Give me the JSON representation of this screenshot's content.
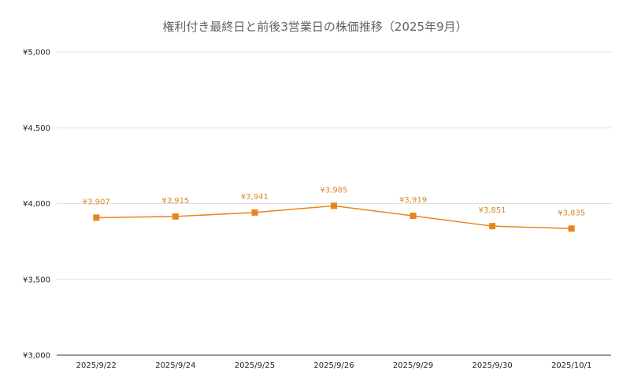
{
  "chart_data": {
    "type": "line",
    "title": "権利付き最終日と前後3営業日の株価推移（2025年9月）",
    "xlabel": "",
    "ylabel": "",
    "categories": [
      "2025/9/22",
      "2025/9/24",
      "2025/9/25",
      "2025/9/26",
      "2025/9/29",
      "2025/9/30",
      "2025/10/1"
    ],
    "series": [
      {
        "values": [
          3907,
          3915,
          3941,
          3985,
          3919,
          3851,
          3835
        ],
        "labels": [
          "¥3,907",
          "¥3,915",
          "¥3,941",
          "¥3,985",
          "¥3,919",
          "¥3,851",
          "¥3,835"
        ],
        "color": "#e8841f"
      }
    ],
    "ylim": [
      3000,
      5000
    ],
    "yticks": [
      3000,
      3500,
      4000,
      4500,
      5000
    ],
    "ytick_labels": [
      "¥3,000",
      "¥3,500",
      "¥4,000",
      "¥4,500",
      "¥5,000"
    ],
    "grid": true,
    "legend": "none",
    "marker": "square",
    "gridline_color": "#e0e0e0",
    "label_color": "#d68a2b"
  }
}
